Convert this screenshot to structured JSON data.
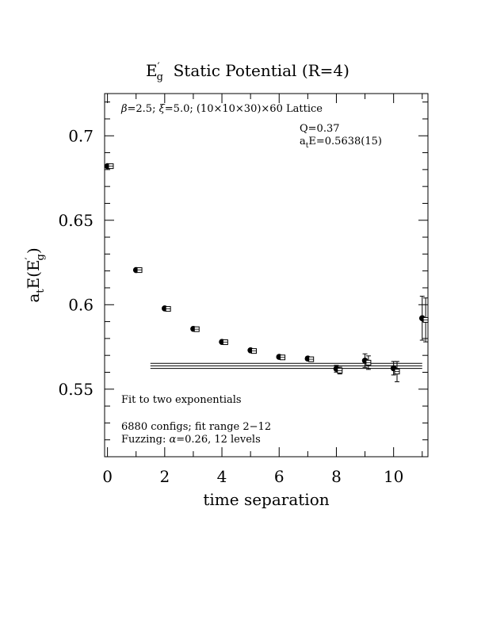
{
  "chart_data": {
    "type": "scatter",
    "title": {
      "main": "E",
      "sup": "′",
      "sub": "g",
      "rest": "  Static Potential (R=4)"
    },
    "xlabel": "time separation",
    "ylabel": {
      "pre": "a",
      "pre_sub": "t",
      "mid": "E(E",
      "sup": "′",
      "sub": "g",
      "post": ")"
    },
    "xlim": [
      -0.1,
      11.2
    ],
    "ylim": [
      0.51,
      0.725
    ],
    "x_ticks": [
      0,
      2,
      4,
      6,
      8,
      10
    ],
    "x_tick_labels": [
      "0",
      "2",
      "4",
      "6",
      "8",
      "10"
    ],
    "y_ticks": [
      0.55,
      0.6,
      0.65,
      0.7
    ],
    "y_tick_labels": [
      "0.55",
      "0.6",
      "0.65",
      "0.7"
    ],
    "grid": false,
    "annotations": {
      "lattice": {
        "beta": "β",
        "rest": "=2.5; ",
        "xi": "ξ",
        "rest2": "=5.0; (10×10×30)×60 Lattice"
      },
      "q": "Q=0.37",
      "energy": {
        "pre": "a",
        "sub": "t",
        "rest": "E=0.5638(15)"
      },
      "fit": "Fit to two exponentials",
      "configs": "6880 configs; fit range 2−12",
      "fuzz": {
        "pre": "Fuzzing: ",
        "alpha": "α",
        "rest": "=0.26, 12 levels"
      }
    },
    "series": [
      {
        "marker": "filled-circle",
        "x": [
          0,
          1,
          2,
          3,
          4,
          5,
          6,
          7,
          8,
          9,
          10,
          11
        ],
        "y": [
          0.682,
          0.6205,
          0.5978,
          0.5857,
          0.578,
          0.573,
          0.5691,
          0.5681,
          0.5621,
          0.5669,
          0.5624,
          0.592
        ],
        "err": [
          0.0005,
          0.0005,
          0.0006,
          0.0006,
          0.0006,
          0.0007,
          0.0008,
          0.001,
          0.002,
          0.004,
          0.004,
          0.013
        ]
      },
      {
        "marker": "open-square",
        "x_offset": 0.12,
        "x": [
          0,
          1,
          2,
          3,
          4,
          5,
          6,
          7,
          8,
          9,
          10,
          11
        ],
        "y": [
          0.682,
          0.6205,
          0.5975,
          0.5855,
          0.5778,
          0.5726,
          0.5688,
          0.5677,
          0.561,
          0.5657,
          0.5604,
          0.591
        ],
        "err": [
          0.0005,
          0.0005,
          0.0006,
          0.0006,
          0.0006,
          0.0007,
          0.0008,
          0.001,
          0.002,
          0.004,
          0.006,
          0.013
        ]
      }
    ],
    "fit_band": {
      "x_range": [
        1.5,
        11.0
      ],
      "center": 0.5638,
      "lower": 0.5623,
      "upper": 0.5653
    }
  }
}
